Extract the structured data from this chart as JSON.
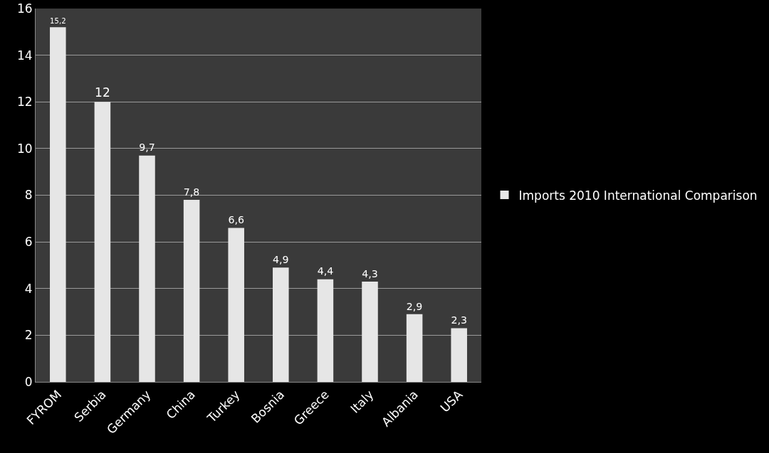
{
  "chart_data": {
    "type": "bar",
    "categories": [
      "FYROM",
      "Serbia",
      "Germany",
      "China",
      "Turkey",
      "Bosnia",
      "Greece",
      "Italy",
      "Albania",
      "USA"
    ],
    "series": [
      {
        "name": "Imports 2010 International Comparison",
        "color": "#e6e6e6",
        "values": [
          15.2,
          12,
          9.7,
          7.8,
          6.6,
          4.9,
          4.4,
          4.3,
          2.9,
          2.3
        ],
        "value_labels": [
          "15,2",
          "12",
          "9,7",
          "7,8",
          "6,6",
          "4,9",
          "4,4",
          "4,3",
          "2,9",
          "2,3"
        ]
      }
    ],
    "ylim": [
      0,
      16
    ],
    "yticks": [
      0,
      2,
      4,
      6,
      8,
      10,
      12,
      14,
      16
    ],
    "grid": "y",
    "legend": "right"
  }
}
